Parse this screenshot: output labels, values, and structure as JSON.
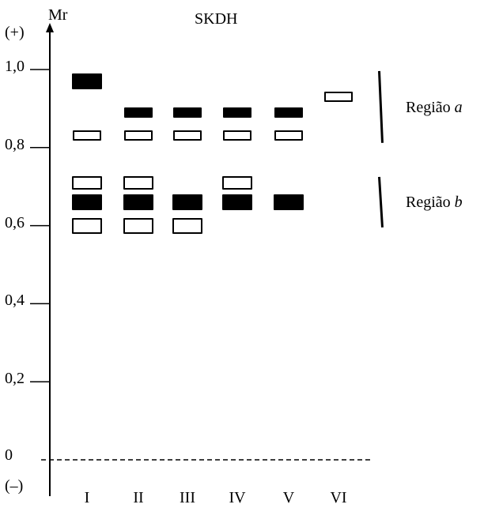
{
  "title": "SKDH",
  "axis": {
    "label": "Mr",
    "top_symbol": "(+)",
    "bottom_symbol": "(–)",
    "ticks": [
      {
        "value": 1.0,
        "label": "1,0"
      },
      {
        "value": 0.8,
        "label": "0,8"
      },
      {
        "value": 0.6,
        "label": "0,6"
      },
      {
        "value": 0.4,
        "label": "0,4"
      },
      {
        "value": 0.2,
        "label": "0,2"
      },
      {
        "value": 0.0,
        "label": "0"
      }
    ]
  },
  "lanes": [
    "I",
    "II",
    "III",
    "IV",
    "V",
    "VI"
  ],
  "bands": [
    {
      "lane": 0,
      "mr": 0.97,
      "style": "filled",
      "size": "large"
    },
    {
      "lane": 0,
      "mr": 0.83,
      "style": "open",
      "size": "small"
    },
    {
      "lane": 0,
      "mr": 0.71,
      "style": "open",
      "size": "medium"
    },
    {
      "lane": 0,
      "mr": 0.66,
      "style": "filled",
      "size": "large"
    },
    {
      "lane": 0,
      "mr": 0.6,
      "style": "open",
      "size": "large"
    },
    {
      "lane": 1,
      "mr": 0.89,
      "style": "filled",
      "size": "small"
    },
    {
      "lane": 1,
      "mr": 0.83,
      "style": "open",
      "size": "small"
    },
    {
      "lane": 1,
      "mr": 0.71,
      "style": "open",
      "size": "medium"
    },
    {
      "lane": 1,
      "mr": 0.66,
      "style": "filled",
      "size": "large"
    },
    {
      "lane": 1,
      "mr": 0.6,
      "style": "open",
      "size": "large"
    },
    {
      "lane": 2,
      "mr": 0.89,
      "style": "filled",
      "size": "small"
    },
    {
      "lane": 2,
      "mr": 0.83,
      "style": "open",
      "size": "small"
    },
    {
      "lane": 2,
      "mr": 0.66,
      "style": "filled",
      "size": "large"
    },
    {
      "lane": 2,
      "mr": 0.6,
      "style": "open",
      "size": "large"
    },
    {
      "lane": 3,
      "mr": 0.89,
      "style": "filled",
      "size": "small"
    },
    {
      "lane": 3,
      "mr": 0.83,
      "style": "open",
      "size": "small"
    },
    {
      "lane": 3,
      "mr": 0.71,
      "style": "open",
      "size": "medium"
    },
    {
      "lane": 3,
      "mr": 0.66,
      "style": "filled",
      "size": "large"
    },
    {
      "lane": 4,
      "mr": 0.89,
      "style": "filled",
      "size": "small"
    },
    {
      "lane": 4,
      "mr": 0.83,
      "style": "open",
      "size": "small"
    },
    {
      "lane": 4,
      "mr": 0.66,
      "style": "filled",
      "size": "large"
    },
    {
      "lane": 5,
      "mr": 0.93,
      "style": "open",
      "size": "small"
    }
  ],
  "regions": [
    {
      "name": "Região",
      "letter": "a",
      "mr_top": 0.995,
      "mr_bottom": 0.81
    },
    {
      "name": "Região",
      "letter": "b",
      "mr_top": 0.725,
      "mr_bottom": 0.595
    }
  ],
  "colors": {
    "band_fill": "#000000",
    "background": "#ffffff"
  }
}
